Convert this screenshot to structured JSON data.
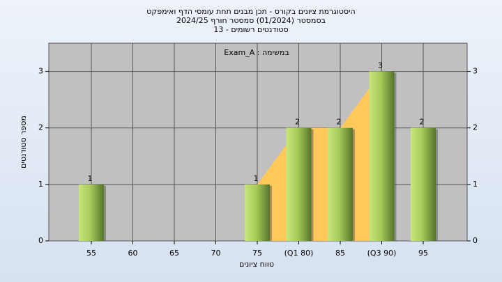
{
  "chart_data": {
    "type": "bar",
    "title": "היסטוגרמת ציונים בקורס - תכן מבנים תחת עומסי הדף ואימפקט",
    "subtitle": "בסמסטר  (01/2024)  סמסטר חורף 2024/25",
    "subtitle2": "סטודנטים רשומים - 13",
    "annotation": "במשימה : Exam_A",
    "x_label": "טווח ציונים",
    "y_label": "מספר סטודנטים",
    "categories": [
      "55",
      "60",
      "65",
      "70",
      "75",
      "(Q1 80)",
      "85",
      "(Q3 90)",
      "95"
    ],
    "values": [
      1,
      0,
      0,
      0,
      1,
      2,
      2,
      3,
      2
    ],
    "color": "#8fb84a",
    "area": {
      "color": "#ffc85a",
      "values": [
        null,
        null,
        null,
        null,
        1,
        2,
        2,
        3,
        null
      ]
    },
    "ylim": [
      0,
      3.5
    ],
    "yticks": [
      0,
      1,
      2,
      3
    ],
    "y2lim": [
      0,
      3.5
    ],
    "y2ticks": [
      0,
      1,
      2,
      3
    ],
    "grid": true
  }
}
